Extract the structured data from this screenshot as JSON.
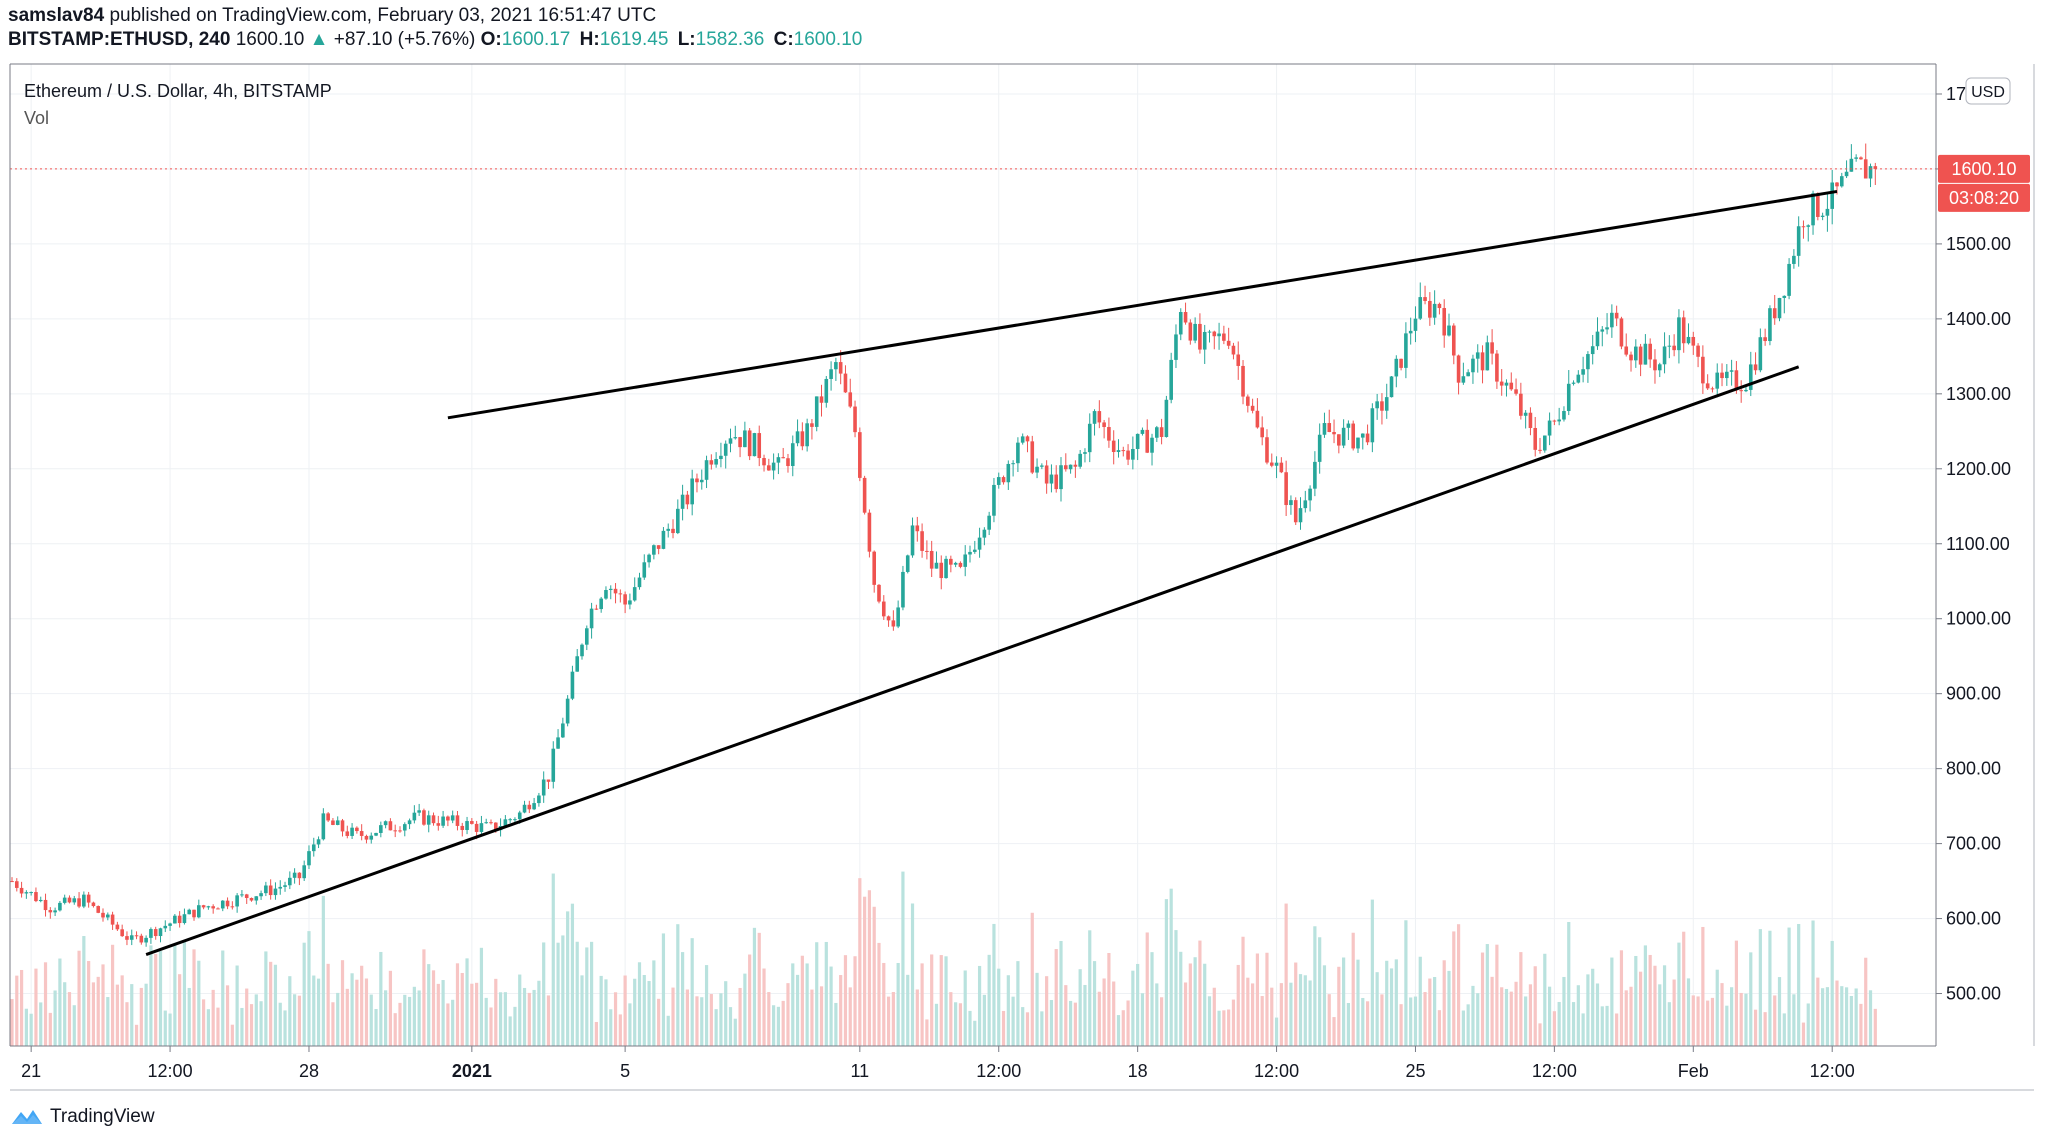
{
  "header": {
    "publisher": "samslav84",
    "published_text": "published on TradingView.com, February 03, 2021 16:51:47 UTC",
    "symbol": "BITSTAMP:ETHUSD, 240",
    "last": "1600.10",
    "change": "+87.10 (+5.76%)",
    "o_label": "O:",
    "o_val": "1600.17",
    "h_label": "H:",
    "h_val": "1619.45",
    "l_label": "L:",
    "l_val": "1582.36",
    "c_label": "C:",
    "c_val": "1600.10"
  },
  "legend": {
    "title": "Ethereum / U.S. Dollar, 4h, BITSTAMP",
    "indicator": "Vol"
  },
  "price_axis": {
    "currency_badge": "USD",
    "last_price_label": "1600.10",
    "countdown_label": "03:08:20"
  },
  "footer": {
    "brand": "TradingView"
  },
  "colors": {
    "up": "#26a69a",
    "down": "#ef5350",
    "vol_up": "#b9e2de",
    "vol_down": "#f7c5c4",
    "grid": "#eef1f4",
    "trendline": "#000000",
    "last_price": "#ef5350"
  },
  "chart_data": {
    "type": "candlestick",
    "title": "Ethereum / U.S. Dollar, 4h, BITSTAMP",
    "ylim": [
      430,
      1740
    ],
    "y_ticks": [
      500,
      600,
      700,
      800,
      900,
      1000,
      1100,
      1200,
      1300,
      1400,
      1500,
      1600,
      1700
    ],
    "y_tick_labels": [
      "500.00",
      "600.00",
      "700.00",
      "800.00",
      "900.00",
      "1000.00",
      "1100.00",
      "1200.00",
      "1300.00",
      "1400.00",
      "1500.00",
      "",
      "1700.00"
    ],
    "x_tick_labels": [
      "21",
      "12:00",
      "28",
      "2021",
      "5",
      "11",
      "12:00",
      "18",
      "12:00",
      "25",
      "12:00",
      "Feb",
      "12:00"
    ],
    "x_tick_bars": [
      4,
      33,
      62,
      96,
      128,
      177,
      206,
      235,
      264,
      293,
      322,
      351,
      380
    ],
    "bar_count": 390,
    "anchor_prices": [
      [
        0,
        650
      ],
      [
        8,
        615
      ],
      [
        15,
        625
      ],
      [
        25,
        570
      ],
      [
        40,
        615
      ],
      [
        55,
        640
      ],
      [
        60,
        655
      ],
      [
        65,
        730
      ],
      [
        72,
        710
      ],
      [
        85,
        735
      ],
      [
        100,
        720
      ],
      [
        106,
        740
      ],
      [
        112,
        790
      ],
      [
        116,
        890
      ],
      [
        120,
        1000
      ],
      [
        124,
        1050
      ],
      [
        128,
        1020
      ],
      [
        134,
        1090
      ],
      [
        140,
        1150
      ],
      [
        146,
        1220
      ],
      [
        150,
        1250
      ],
      [
        155,
        1230
      ],
      [
        160,
        1200
      ],
      [
        166,
        1250
      ],
      [
        172,
        1340
      ],
      [
        176,
        1250
      ],
      [
        180,
        1050
      ],
      [
        184,
        980
      ],
      [
        188,
        1120
      ],
      [
        192,
        1070
      ],
      [
        198,
        1060
      ],
      [
        204,
        1150
      ],
      [
        210,
        1240
      ],
      [
        216,
        1180
      ],
      [
        222,
        1200
      ],
      [
        226,
        1270
      ],
      [
        232,
        1220
      ],
      [
        240,
        1250
      ],
      [
        244,
        1420
      ],
      [
        248,
        1360
      ],
      [
        254,
        1380
      ],
      [
        260,
        1250
      ],
      [
        264,
        1200
      ],
      [
        268,
        1130
      ],
      [
        274,
        1250
      ],
      [
        282,
        1240
      ],
      [
        288,
        1310
      ],
      [
        293,
        1410
      ],
      [
        298,
        1420
      ],
      [
        302,
        1330
      ],
      [
        308,
        1350
      ],
      [
        314,
        1290
      ],
      [
        318,
        1230
      ],
      [
        322,
        1260
      ],
      [
        326,
        1330
      ],
      [
        330,
        1360
      ],
      [
        334,
        1400
      ],
      [
        338,
        1360
      ],
      [
        344,
        1340
      ],
      [
        348,
        1390
      ],
      [
        352,
        1340
      ],
      [
        356,
        1310
      ],
      [
        362,
        1320
      ],
      [
        366,
        1380
      ],
      [
        370,
        1450
      ],
      [
        374,
        1540
      ],
      [
        380,
        1560
      ],
      [
        385,
        1600
      ]
    ],
    "last_price": 1600.1,
    "trendlines": [
      {
        "name": "upper",
        "start": [
          91,
          1268
        ],
        "end": [
          381,
          1570
        ]
      },
      {
        "name": "lower",
        "start": [
          28,
          552
        ],
        "end": [
          373,
          1336
        ]
      }
    ]
  }
}
